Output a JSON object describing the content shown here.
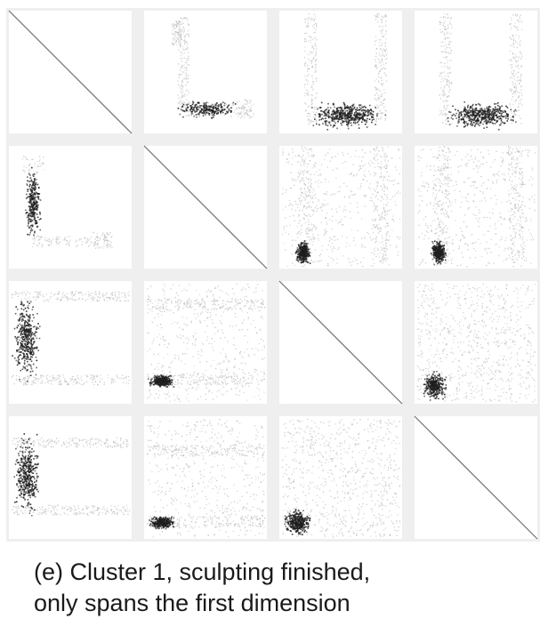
{
  "caption": {
    "line1": "(e) Cluster 1, sculpting finished,",
    "line2": "only spans the first dimension"
  },
  "chart_data": {
    "type": "scatter",
    "layout": "scatterplot-matrix",
    "dimensions": 4,
    "title": "",
    "xlabel": "",
    "ylabel": "",
    "grid": false,
    "legend": "none",
    "xlim": [
      0,
      1
    ],
    "ylim": [
      0,
      1
    ],
    "colors": {
      "background": "#ffffff",
      "panel_border": "#efefef",
      "diagonal_line": "#6e6e6e",
      "selected_points": "#1e1e1e",
      "context_points": "#bdbdbd"
    },
    "point_groups": [
      {
        "name": "",
        "row": 0,
        "col": 1,
        "role": "context",
        "count": 90,
        "x": [
          0.22,
          0.3
        ],
        "y": [
          0.72,
          0.92
        ]
      },
      {
        "name": "",
        "row": 0,
        "col": 1,
        "role": "context",
        "count": 170,
        "x": [
          0.27,
          0.36
        ],
        "y": [
          0.18,
          0.95
        ]
      },
      {
        "name": "",
        "row": 0,
        "col": 1,
        "role": "context",
        "count": 100,
        "x": [
          0.3,
          0.9
        ],
        "y": [
          0.14,
          0.26
        ]
      },
      {
        "name": "",
        "row": 0,
        "col": 1,
        "role": "context",
        "count": 50,
        "x": [
          0.76,
          0.87
        ],
        "y": [
          0.12,
          0.28
        ]
      },
      {
        "name": "",
        "row": 0,
        "col": 1,
        "role": "selected",
        "count": 240,
        "x": [
          0.22,
          0.8
        ],
        "y": [
          0.12,
          0.28
        ]
      },
      {
        "name": "",
        "row": 0,
        "col": 2,
        "role": "context",
        "count": 180,
        "x": [
          0.2,
          0.3
        ],
        "y": [
          0.08,
          0.98
        ]
      },
      {
        "name": "",
        "row": 0,
        "col": 2,
        "role": "context",
        "count": 180,
        "x": [
          0.77,
          0.87
        ],
        "y": [
          0.08,
          0.98
        ]
      },
      {
        "name": "",
        "row": 0,
        "col": 2,
        "role": "selected",
        "count": 480,
        "x": [
          0.2,
          0.87
        ],
        "y": [
          0.03,
          0.28
        ]
      },
      {
        "name": "",
        "row": 0,
        "col": 3,
        "role": "context",
        "count": 180,
        "x": [
          0.2,
          0.3
        ],
        "y": [
          0.08,
          0.98
        ]
      },
      {
        "name": "",
        "row": 0,
        "col": 3,
        "role": "context",
        "count": 180,
        "x": [
          0.77,
          0.87
        ],
        "y": [
          0.08,
          0.98
        ]
      },
      {
        "name": "",
        "row": 0,
        "col": 3,
        "role": "selected",
        "count": 480,
        "x": [
          0.2,
          0.87
        ],
        "y": [
          0.03,
          0.28
        ]
      },
      {
        "name": "",
        "row": 1,
        "col": 0,
        "role": "context",
        "count": 40,
        "x": [
          0.1,
          0.28
        ],
        "y": [
          0.78,
          0.92
        ]
      },
      {
        "name": "",
        "row": 1,
        "col": 0,
        "role": "context",
        "count": 120,
        "x": [
          0.18,
          0.8
        ],
        "y": [
          0.18,
          0.27
        ]
      },
      {
        "name": "",
        "row": 1,
        "col": 0,
        "role": "context",
        "count": 50,
        "x": [
          0.68,
          0.84
        ],
        "y": [
          0.17,
          0.3
        ]
      },
      {
        "name": "",
        "row": 1,
        "col": 0,
        "role": "selected",
        "count": 300,
        "x": [
          0.12,
          0.26
        ],
        "y": [
          0.2,
          0.88
        ]
      },
      {
        "name": "",
        "row": 1,
        "col": 2,
        "role": "context",
        "count": 500,
        "x": [
          0.02,
          0.98
        ],
        "y": [
          0.02,
          0.98
        ]
      },
      {
        "name": "",
        "row": 1,
        "col": 2,
        "role": "context",
        "count": 180,
        "x": [
          0.15,
          0.28
        ],
        "y": [
          0.05,
          1.0
        ]
      },
      {
        "name": "",
        "row": 1,
        "col": 2,
        "role": "context",
        "count": 180,
        "x": [
          0.76,
          0.88
        ],
        "y": [
          0.05,
          1.0
        ]
      },
      {
        "name": "",
        "row": 1,
        "col": 2,
        "role": "selected",
        "count": 330,
        "x": [
          0.12,
          0.26
        ],
        "y": [
          0.02,
          0.25
        ]
      },
      {
        "name": "",
        "row": 1,
        "col": 3,
        "role": "context",
        "count": 500,
        "x": [
          0.02,
          0.98
        ],
        "y": [
          0.02,
          0.98
        ]
      },
      {
        "name": "",
        "row": 1,
        "col": 3,
        "role": "context",
        "count": 180,
        "x": [
          0.15,
          0.28
        ],
        "y": [
          0.05,
          1.0
        ]
      },
      {
        "name": "",
        "row": 1,
        "col": 3,
        "role": "context",
        "count": 180,
        "x": [
          0.76,
          0.88
        ],
        "y": [
          0.05,
          1.0
        ]
      },
      {
        "name": "",
        "row": 1,
        "col": 3,
        "role": "selected",
        "count": 330,
        "x": [
          0.12,
          0.26
        ],
        "y": [
          0.02,
          0.25
        ]
      },
      {
        "name": "",
        "row": 2,
        "col": 0,
        "role": "context",
        "count": 200,
        "x": [
          0.02,
          0.98
        ],
        "y": [
          0.84,
          0.92
        ]
      },
      {
        "name": "",
        "row": 2,
        "col": 0,
        "role": "context",
        "count": 200,
        "x": [
          0.02,
          0.98
        ],
        "y": [
          0.16,
          0.24
        ]
      },
      {
        "name": "",
        "row": 2,
        "col": 0,
        "role": "selected",
        "count": 420,
        "x": [
          0.02,
          0.26
        ],
        "y": [
          0.16,
          0.92
        ]
      },
      {
        "name": "",
        "row": 2,
        "col": 1,
        "role": "context",
        "count": 500,
        "x": [
          0.02,
          0.98
        ],
        "y": [
          0.02,
          0.98
        ]
      },
      {
        "name": "",
        "row": 2,
        "col": 1,
        "role": "context",
        "count": 180,
        "x": [
          0.02,
          0.98
        ],
        "y": [
          0.77,
          0.86
        ]
      },
      {
        "name": "",
        "row": 2,
        "col": 1,
        "role": "context",
        "count": 180,
        "x": [
          0.02,
          0.98
        ],
        "y": [
          0.16,
          0.25
        ]
      },
      {
        "name": "",
        "row": 2,
        "col": 1,
        "role": "selected",
        "count": 330,
        "x": [
          0.02,
          0.26
        ],
        "y": [
          0.13,
          0.25
        ]
      },
      {
        "name": "",
        "row": 2,
        "col": 3,
        "role": "context",
        "count": 800,
        "x": [
          0.02,
          0.98
        ],
        "y": [
          0.02,
          0.98
        ]
      },
      {
        "name": "",
        "row": 2,
        "col": 3,
        "role": "selected",
        "count": 360,
        "x": [
          0.05,
          0.27
        ],
        "y": [
          0.02,
          0.28
        ]
      },
      {
        "name": "",
        "row": 3,
        "col": 0,
        "role": "context",
        "count": 200,
        "x": [
          0.02,
          0.98
        ],
        "y": [
          0.75,
          0.83
        ]
      },
      {
        "name": "",
        "row": 3,
        "col": 0,
        "role": "context",
        "count": 200,
        "x": [
          0.02,
          0.98
        ],
        "y": [
          0.2,
          0.28
        ]
      },
      {
        "name": "",
        "row": 3,
        "col": 0,
        "role": "selected",
        "count": 420,
        "x": [
          0.02,
          0.26
        ],
        "y": [
          0.16,
          0.9
        ]
      },
      {
        "name": "",
        "row": 3,
        "col": 1,
        "role": "context",
        "count": 500,
        "x": [
          0.02,
          0.98
        ],
        "y": [
          0.02,
          0.98
        ]
      },
      {
        "name": "",
        "row": 3,
        "col": 1,
        "role": "context",
        "count": 180,
        "x": [
          0.02,
          0.98
        ],
        "y": [
          0.68,
          0.77
        ]
      },
      {
        "name": "",
        "row": 3,
        "col": 1,
        "role": "context",
        "count": 180,
        "x": [
          0.02,
          0.98
        ],
        "y": [
          0.1,
          0.19
        ]
      },
      {
        "name": "",
        "row": 3,
        "col": 1,
        "role": "selected",
        "count": 330,
        "x": [
          0.02,
          0.26
        ],
        "y": [
          0.08,
          0.2
        ]
      },
      {
        "name": "",
        "row": 3,
        "col": 2,
        "role": "context",
        "count": 800,
        "x": [
          0.02,
          0.98
        ],
        "y": [
          0.02,
          0.98
        ]
      },
      {
        "name": "",
        "row": 3,
        "col": 2,
        "role": "selected",
        "count": 360,
        "x": [
          0.02,
          0.27
        ],
        "y": [
          0.02,
          0.26
        ]
      }
    ]
  }
}
